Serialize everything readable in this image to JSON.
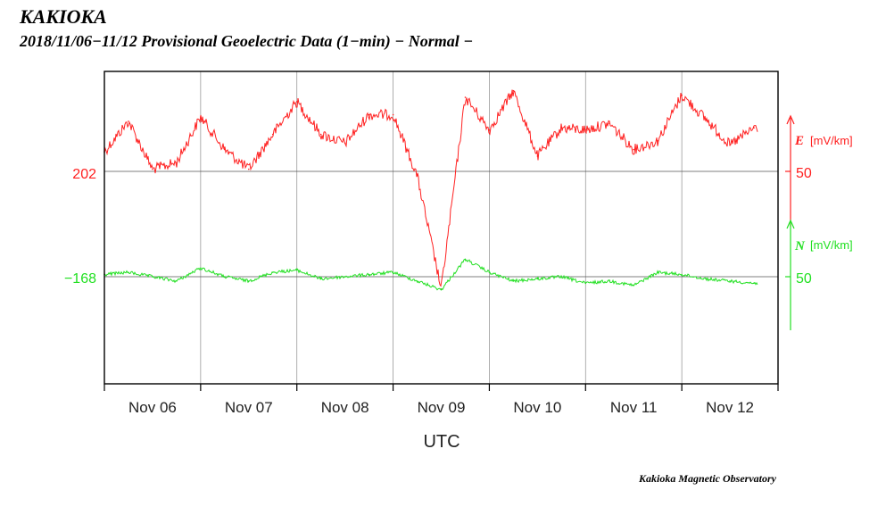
{
  "header": {
    "station": "KAKIOKA",
    "subtitle": "2018/11/06−11/12  Provisional Geoelectric Data (1−min)   − Normal −"
  },
  "footer": {
    "credit": "Kakioka Magnetic Observatory"
  },
  "colors": {
    "E": "#ff2020",
    "N": "#22e022",
    "axis": "#000000",
    "grid": "#9a9a9a"
  },
  "chart_data": {
    "type": "line",
    "title": "2018/11/06−11/12  Provisional Geoelectric Data (1−min)   − Normal −",
    "xlabel": "UTC",
    "x_unit": "day",
    "xlim": [
      "2018-11-06T00:00Z",
      "2018-11-13T00:00Z"
    ],
    "x_tick_labels": [
      "Nov 06",
      "Nov 07",
      "Nov 08",
      "Nov 09",
      "Nov 10",
      "Nov 11",
      "Nov 12"
    ],
    "grid": "vertical day lines",
    "series": [
      {
        "name": "E",
        "unit": "[mV/km]",
        "baseline_label": "202",
        "scale_bar_label": "50",
        "x": [
          "2018-11-06T00:00Z",
          "2018-11-06T06:00Z",
          "2018-11-06T12:00Z",
          "2018-11-06T18:00Z",
          "2018-11-07T00:00Z",
          "2018-11-07T06:00Z",
          "2018-11-07T12:00Z",
          "2018-11-07T18:00Z",
          "2018-11-08T00:00Z",
          "2018-11-08T06:00Z",
          "2018-11-08T12:00Z",
          "2018-11-08T18:00Z",
          "2018-11-09T00:00Z",
          "2018-11-09T06:00Z",
          "2018-11-09T12:00Z",
          "2018-11-09T18:00Z",
          "2018-11-10T00:00Z",
          "2018-11-10T06:00Z",
          "2018-11-10T12:00Z",
          "2018-11-10T18:00Z",
          "2018-11-11T00:00Z",
          "2018-11-11T06:00Z",
          "2018-11-11T12:00Z",
          "2018-11-11T18:00Z",
          "2018-11-12T00:00Z",
          "2018-11-12T06:00Z",
          "2018-11-12T12:00Z",
          "2018-11-12T18:00Z"
        ],
        "values": [
          211,
          225,
          203,
          206,
          227,
          212,
          203,
          219,
          234,
          219,
          215,
          228,
          228,
          200,
          148,
          236,
          221,
          239,
          209,
          222,
          221,
          224,
          212,
          216,
          237,
          226,
          214,
          222
        ]
      },
      {
        "name": "N",
        "unit": "[mV/km]",
        "baseline_label": "−168",
        "scale_bar_label": "50",
        "x": [
          "2018-11-06T00:00Z",
          "2018-11-06T06:00Z",
          "2018-11-06T12:00Z",
          "2018-11-06T18:00Z",
          "2018-11-07T00:00Z",
          "2018-11-07T06:00Z",
          "2018-11-07T12:00Z",
          "2018-11-07T18:00Z",
          "2018-11-08T00:00Z",
          "2018-11-08T06:00Z",
          "2018-11-08T12:00Z",
          "2018-11-08T18:00Z",
          "2018-11-09T00:00Z",
          "2018-11-09T06:00Z",
          "2018-11-09T12:00Z",
          "2018-11-09T18:00Z",
          "2018-11-10T00:00Z",
          "2018-11-10T06:00Z",
          "2018-11-10T12:00Z",
          "2018-11-10T18:00Z",
          "2018-11-11T00:00Z",
          "2018-11-11T06:00Z",
          "2018-11-11T12:00Z",
          "2018-11-11T18:00Z",
          "2018-11-12T00:00Z",
          "2018-11-12T06:00Z",
          "2018-11-12T12:00Z",
          "2018-11-12T18:00Z"
        ],
        "values": [
          -167,
          -166,
          -168,
          -170,
          -164,
          -168,
          -170,
          -166,
          -165,
          -169,
          -168,
          -167,
          -166,
          -170,
          -174,
          -160,
          -166,
          -170,
          -169,
          -168,
          -171,
          -170,
          -172,
          -166,
          -167,
          -169,
          -170,
          -171
        ]
      }
    ]
  }
}
